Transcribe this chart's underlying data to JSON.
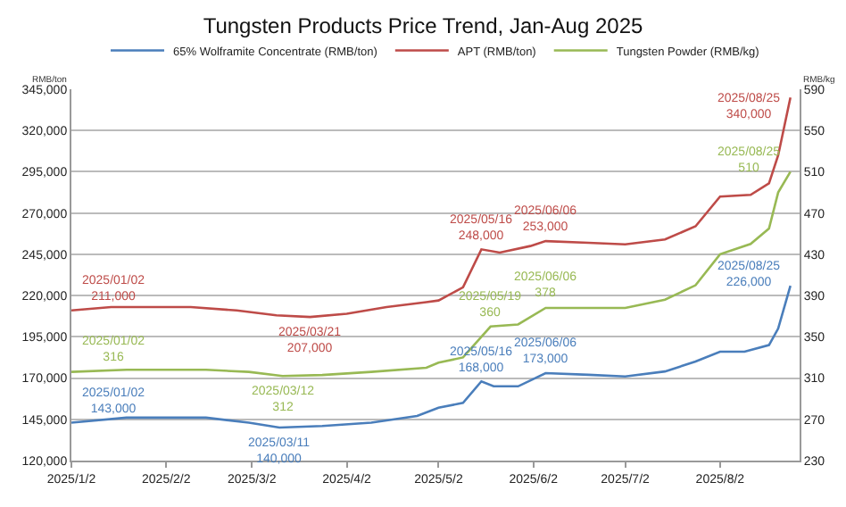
{
  "chart_data": {
    "type": "line",
    "title": "Tungsten Products Price Trend, Jan-Aug 2025",
    "ylabel": "RMB/ton",
    "y2label": "RMB/kg",
    "xlim": [
      "2025-01-02",
      "2025-08-28"
    ],
    "xticks": [
      {
        "value": "2025-01-02",
        "label": "2025/1/2"
      },
      {
        "value": "2025-02-02",
        "label": "2025/2/2"
      },
      {
        "value": "2025-03-02",
        "label": "2025/3/2"
      },
      {
        "value": "2025-04-02",
        "label": "2025/4/2"
      },
      {
        "value": "2025-05-02",
        "label": "2025/5/2"
      },
      {
        "value": "2025-06-02",
        "label": "2025/6/2"
      },
      {
        "value": "2025-07-02",
        "label": "2025/7/2"
      },
      {
        "value": "2025-08-02",
        "label": "2025/8/2"
      }
    ],
    "ylim": [
      120000,
      345000
    ],
    "yticks": [
      {
        "value": 120000,
        "label": "120,000"
      },
      {
        "value": 145000,
        "label": "145,000"
      },
      {
        "value": 170000,
        "label": "170,000"
      },
      {
        "value": 195000,
        "label": "195,000"
      },
      {
        "value": 220000,
        "label": "220,000"
      },
      {
        "value": 245000,
        "label": "245,000"
      },
      {
        "value": 270000,
        "label": "270,000"
      },
      {
        "value": 295000,
        "label": "295,000"
      },
      {
        "value": 320000,
        "label": "320,000"
      },
      {
        "value": 345000,
        "label": "345,000"
      }
    ],
    "y2lim": [
      230,
      590
    ],
    "y2ticks": [
      230,
      270,
      310,
      350,
      390,
      430,
      470,
      510,
      550,
      590
    ],
    "grid": "y",
    "legend": "top",
    "marker": "none",
    "line_style": "solid",
    "series": [
      {
        "name": "65% Wolframite Concentrate (RMB/ton)",
        "color": "#4a7ebb",
        "x": [
          "2025-01-02",
          "2025-01-20",
          "2025-02-15",
          "2025-03-01",
          "2025-03-11",
          "2025-03-25",
          "2025-04-10",
          "2025-04-25",
          "2025-05-02",
          "2025-05-10",
          "2025-05-16",
          "2025-05-20",
          "2025-05-28",
          "2025-06-06",
          "2025-06-20",
          "2025-07-02",
          "2025-07-15",
          "2025-07-25",
          "2025-08-02",
          "2025-08-10",
          "2025-08-18",
          "2025-08-21",
          "2025-08-25"
        ],
        "values": [
          143000,
          146000,
          146000,
          143000,
          140000,
          141000,
          143000,
          147000,
          152000,
          155000,
          168000,
          165000,
          165000,
          173000,
          172000,
          171000,
          174000,
          180000,
          186000,
          186000,
          190000,
          200000,
          226000
        ],
        "value_labels": [
          "2025/01/02\n143,000",
          null,
          null,
          null,
          "2025/03/11\n140,000",
          null,
          null,
          null,
          null,
          null,
          "2025/05/16\n168,000",
          null,
          null,
          "2025/06/06\n173,000",
          null,
          null,
          null,
          null,
          null,
          null,
          null,
          null,
          "2025/08/25\n226,000"
        ]
      },
      {
        "name": "APT (RMB/ton)",
        "color": "#be4b48",
        "x": [
          "2025-01-02",
          "2025-01-15",
          "2025-02-10",
          "2025-02-25",
          "2025-03-10",
          "2025-03-21",
          "2025-04-02",
          "2025-04-15",
          "2025-04-28",
          "2025-05-02",
          "2025-05-10",
          "2025-05-16",
          "2025-05-22",
          "2025-06-01",
          "2025-06-06",
          "2025-06-20",
          "2025-07-02",
          "2025-07-15",
          "2025-07-25",
          "2025-08-02",
          "2025-08-12",
          "2025-08-18",
          "2025-08-21",
          "2025-08-25"
        ],
        "values": [
          211000,
          213000,
          213000,
          211000,
          208000,
          207000,
          209000,
          213000,
          216000,
          217000,
          225000,
          248000,
          246000,
          250000,
          253000,
          252000,
          251000,
          254000,
          262000,
          280000,
          281000,
          288000,
          305000,
          340000
        ],
        "value_labels": [
          "2025/01/02\n211,000",
          null,
          null,
          null,
          null,
          "2025/03/21\n207,000",
          null,
          null,
          null,
          null,
          null,
          "2025/05/16\n248,000",
          null,
          null,
          "2025/06/06\n253,000",
          null,
          null,
          null,
          null,
          null,
          null,
          null,
          null,
          "2025/08/25\n340,000"
        ]
      },
      {
        "name": "Tungsten Powder (RMB/kg)",
        "color": "#98b954",
        "axis": "y2",
        "x": [
          "2025-01-02",
          "2025-01-20",
          "2025-02-15",
          "2025-03-01",
          "2025-03-12",
          "2025-03-25",
          "2025-04-10",
          "2025-04-28",
          "2025-05-02",
          "2025-05-10",
          "2025-05-19",
          "2025-05-28",
          "2025-06-06",
          "2025-06-20",
          "2025-07-02",
          "2025-07-15",
          "2025-07-25",
          "2025-08-02",
          "2025-08-12",
          "2025-08-18",
          "2025-08-21",
          "2025-08-25"
        ],
        "values": [
          316,
          318,
          318,
          316,
          312,
          313,
          316,
          320,
          325,
          330,
          360,
          362,
          378,
          378,
          378,
          386,
          400,
          430,
          440,
          455,
          490,
          510
        ],
        "value_labels": [
          "2025/01/02\n316",
          null,
          null,
          null,
          "2025/03/12\n312",
          null,
          null,
          null,
          null,
          null,
          "2025/05/19\n360",
          null,
          "2025/06/06\n378",
          null,
          null,
          null,
          null,
          null,
          null,
          null,
          null,
          "2025/08/25\n510"
        ]
      }
    ]
  }
}
